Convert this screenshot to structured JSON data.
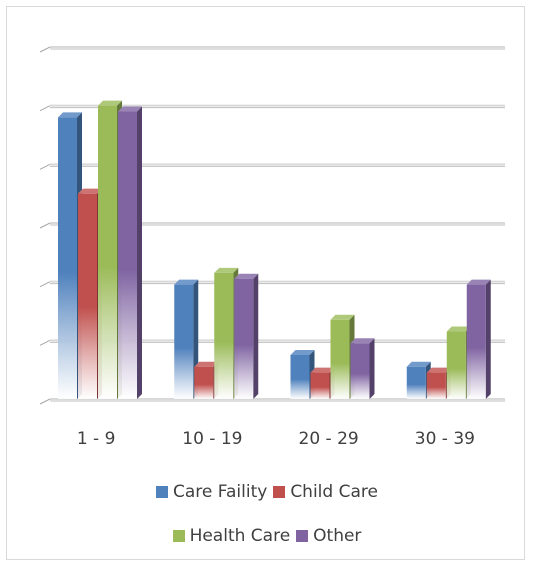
{
  "chart_data": {
    "type": "bar",
    "style": "3d-clustered-column",
    "categories": [
      "1 - 9",
      "10 - 19",
      "20 - 29",
      "30 - 39"
    ],
    "series": [
      {
        "name": "Care Faility",
        "color": "#4f81bd",
        "values": [
          48,
          19.5,
          7.5,
          5.5
        ]
      },
      {
        "name": "Child Care",
        "color": "#c0504d",
        "values": [
          35,
          5.5,
          4.5,
          4.5
        ]
      },
      {
        "name": "Health Care",
        "color": "#9bbb59",
        "values": [
          50,
          21.5,
          13.5,
          11.5
        ]
      },
      {
        "name": "Other",
        "color": "#8064a2",
        "values": [
          49,
          20.5,
          9.5,
          19.5
        ]
      }
    ],
    "ylim": [
      0,
      60
    ],
    "gridlines": true,
    "legend_position": "bottom"
  }
}
